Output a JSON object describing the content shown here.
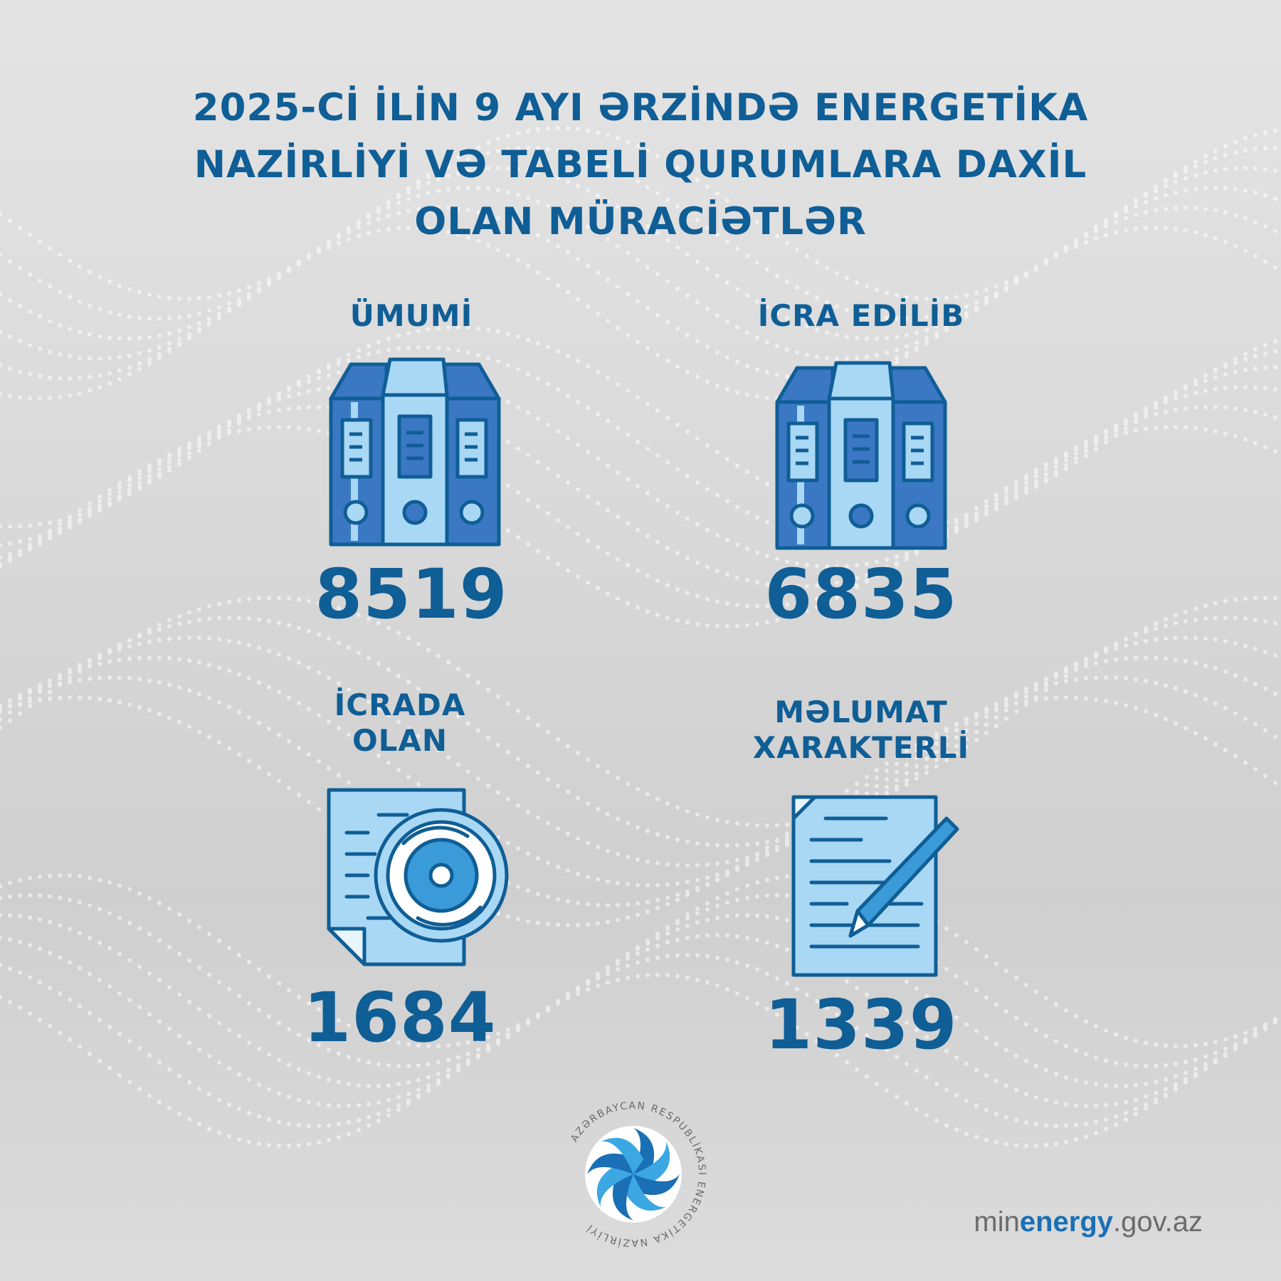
{
  "title": {
    "line1": "2025-Cİ İLİN 9 AYI ƏRZİNDƏ ENERGETİKA",
    "line2": "NAZİRLİYİ VƏ TABELİ QURUMLARA  DAXİL",
    "line3": "OLAN MÜRACİƏTLƏR"
  },
  "stats": [
    {
      "label_line1": "ÜMUMİ",
      "label_line2": "",
      "value": "8519",
      "icon": "binders-icon"
    },
    {
      "label_line1": "İCRA EDİLİB",
      "label_line2": "",
      "value": "6835",
      "icon": "binders-icon"
    },
    {
      "label_line1": "İCRADA",
      "label_line2": "OLAN",
      "value": "1684",
      "icon": "document-gear-icon"
    },
    {
      "label_line1": "MƏLUMAT",
      "label_line2": "XARAKTERLİ",
      "value": "1339",
      "icon": "document-pencil-icon"
    }
  ],
  "footer": {
    "emblem_text": "AZƏRBAYCAN RESPUBLİKASI ENERGETİKA NAZİRLİYİ",
    "site_prefix": "min",
    "site_brand": "energy",
    "site_suffix": ".gov.az"
  },
  "colors": {
    "primary": "#0f5e96",
    "dark_blue": "#3b78c4",
    "light_blue": "#a9d8f5",
    "brand_blue": "#1a6fb5"
  }
}
